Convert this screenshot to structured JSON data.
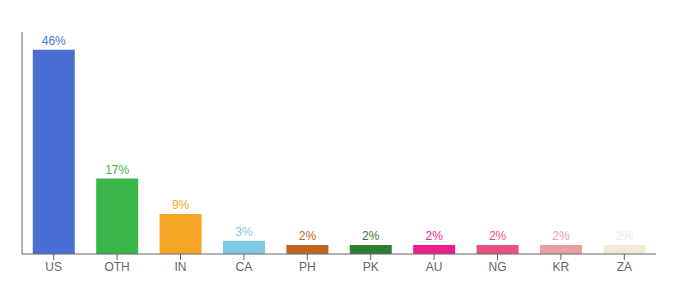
{
  "chart_data": {
    "type": "bar",
    "categories": [
      "US",
      "OTH",
      "IN",
      "CA",
      "PH",
      "PK",
      "AU",
      "NG",
      "KR",
      "ZA"
    ],
    "values": [
      46,
      17,
      9,
      3,
      2,
      2,
      2,
      2,
      2,
      2
    ],
    "value_labels": [
      "46%",
      "17%",
      "9%",
      "3%",
      "2%",
      "2%",
      "2%",
      "2%",
      "2%",
      "2%"
    ],
    "colors": [
      "#4a6fd4",
      "#3ab54a",
      "#f5a623",
      "#7ec8e3",
      "#c0651d",
      "#2e7d32",
      "#e91e8c",
      "#e85080",
      "#e8a0a0",
      "#f0ead6"
    ],
    "ylim": [
      0,
      50
    ],
    "grid": false,
    "data_labels": true,
    "tick_labels": "x"
  }
}
